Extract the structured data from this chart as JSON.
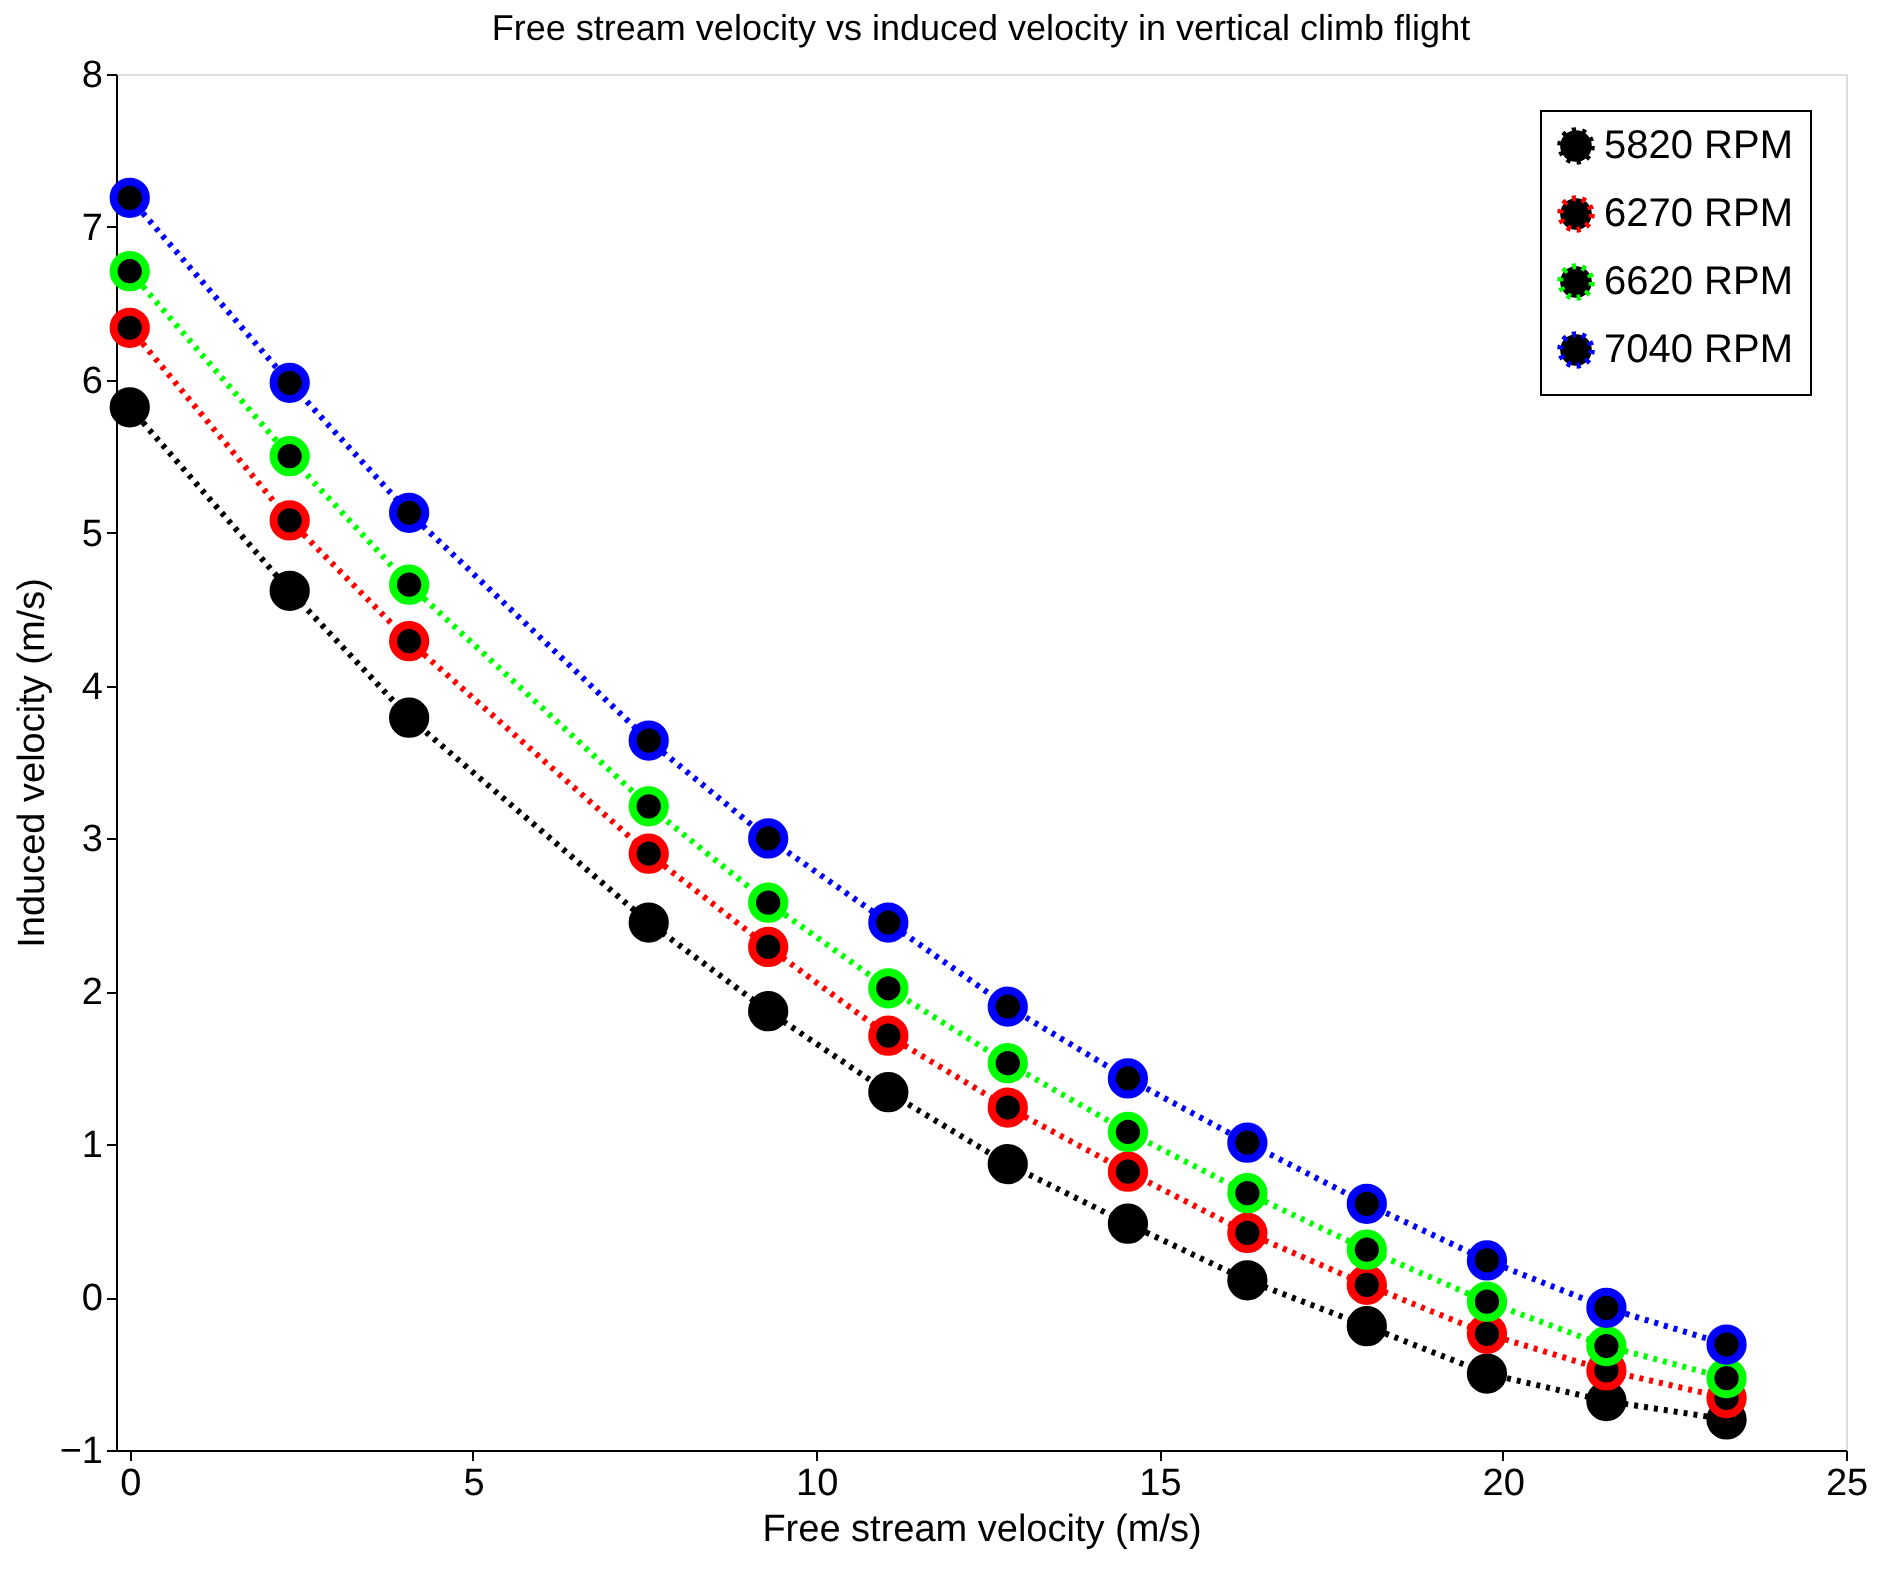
{
  "chart_data": {
    "type": "line",
    "title": "Free stream velocity vs induced velocity in vertical climb flight",
    "xlabel": "Free stream velocity (m/s)",
    "ylabel": "Induced velocity (m/s)",
    "x": [
      0,
      2.33,
      4.07,
      7.56,
      9.3,
      11.05,
      12.79,
      14.54,
      16.28,
      18.02,
      19.77,
      21.51,
      23.26
    ],
    "series": [
      {
        "name": "5820 RPM",
        "color": "#000000",
        "values": [
          5.82,
          4.62,
          3.79,
          2.45,
          1.87,
          1.34,
          0.87,
          0.48,
          0.11,
          -0.19,
          -0.5,
          -0.68,
          -0.8
        ]
      },
      {
        "name": "6270 RPM",
        "color": "#ff0000",
        "values": [
          6.34,
          5.08,
          4.29,
          2.9,
          2.29,
          1.71,
          1.24,
          0.82,
          0.42,
          0.08,
          -0.24,
          -0.48,
          -0.66
        ]
      },
      {
        "name": "6620 RPM",
        "color": "#00ff00",
        "values": [
          6.71,
          5.5,
          4.66,
          3.21,
          2.58,
          2.02,
          1.53,
          1.08,
          0.68,
          0.31,
          -0.03,
          -0.32,
          -0.53
        ]
      },
      {
        "name": "7040 RPM",
        "color": "#0000ff",
        "values": [
          7.19,
          5.98,
          5.13,
          3.64,
          3.0,
          2.45,
          1.9,
          1.43,
          1.01,
          0.61,
          0.24,
          -0.07,
          -0.31
        ]
      }
    ],
    "xlim": [
      -0.2,
      25
    ],
    "xticks": [
      0,
      5,
      10,
      15,
      20,
      25
    ],
    "ylim": [
      -1,
      8
    ],
    "yticks": [
      -1,
      0,
      1,
      2,
      3,
      4,
      5,
      6,
      7,
      8
    ],
    "marker": "circle",
    "line_style": "dotted",
    "legend": "top right",
    "grid": false
  }
}
